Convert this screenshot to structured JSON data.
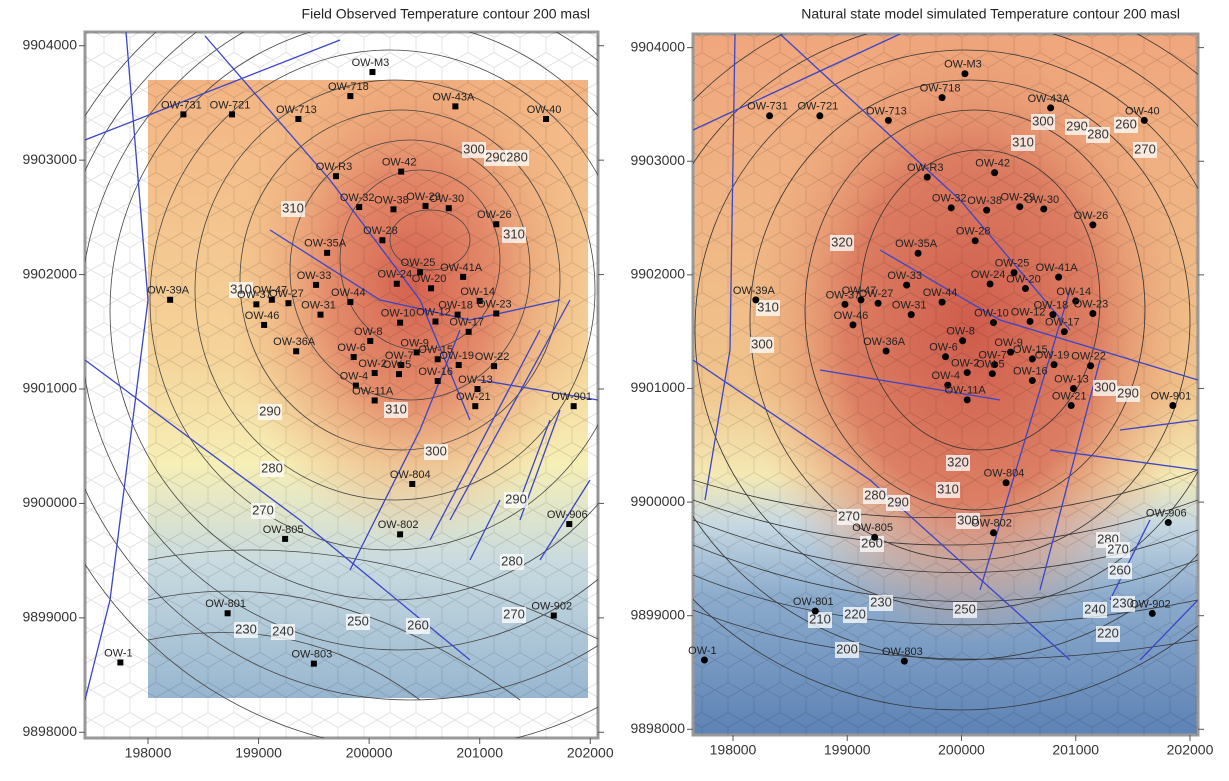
{
  "panels": [
    {
      "title": "Field Observed Temperature contour 200 masl",
      "marker": "square",
      "xlim": [
        197430,
        202070
      ],
      "ylim": [
        9897950,
        9904120
      ],
      "xticks": [
        198000,
        199000,
        200000,
        201000,
        202000
      ],
      "yticks": [
        9898000,
        9899000,
        9900000,
        9901000,
        9902000,
        9903000,
        9904000
      ],
      "contour_labels": [
        310,
        300,
        290,
        280,
        310,
        310,
        310,
        290,
        280,
        300,
        290,
        280,
        270,
        270,
        230,
        240,
        250,
        260
      ]
    },
    {
      "title": "Natural state model simulated  Temperature contour 200 masl",
      "marker": "circle",
      "xlim": [
        197650,
        202070
      ],
      "ylim": [
        9897950,
        9904120
      ],
      "xticks": [
        198000,
        199000,
        200000,
        201000,
        202000
      ],
      "yticks": [
        9898000,
        9899000,
        9900000,
        9901000,
        9902000,
        9903000,
        9904000
      ],
      "contour_labels": [
        300,
        290,
        280,
        260,
        270,
        310,
        320,
        310,
        300,
        300,
        290,
        320,
        310,
        300,
        290,
        280,
        270,
        260,
        280,
        270,
        260,
        250,
        240,
        230,
        220,
        230,
        210,
        220,
        200
      ]
    }
  ],
  "wells": [
    {
      "name": "OW-M3",
      "x": 200030,
      "y": 9903770
    },
    {
      "name": "OW-718",
      "x": 199830,
      "y": 9903560
    },
    {
      "name": "OW-43A",
      "x": 200780,
      "y": 9903470
    },
    {
      "name": "OW-40",
      "x": 201600,
      "y": 9903360
    },
    {
      "name": "OW-731",
      "x": 198320,
      "y": 9903400
    },
    {
      "name": "OW-721",
      "x": 198760,
      "y": 9903400
    },
    {
      "name": "OW-713",
      "x": 199360,
      "y": 9903360
    },
    {
      "name": "OW-R3",
      "x": 199700,
      "y": 9902860
    },
    {
      "name": "OW-42",
      "x": 200290,
      "y": 9902900
    },
    {
      "name": "OW-32",
      "x": 199910,
      "y": 9902590
    },
    {
      "name": "OW-38",
      "x": 200220,
      "y": 9902570
    },
    {
      "name": "OW-29",
      "x": 200510,
      "y": 9902600
    },
    {
      "name": "OW-30",
      "x": 200720,
      "y": 9902580
    },
    {
      "name": "OW-26",
      "x": 201150,
      "y": 9902440
    },
    {
      "name": "OW-28",
      "x": 200120,
      "y": 9902300
    },
    {
      "name": "OW-35A",
      "x": 199620,
      "y": 9902190
    },
    {
      "name": "OW-25",
      "x": 200460,
      "y": 9902020
    },
    {
      "name": "OW-24",
      "x": 200250,
      "y": 9901920
    },
    {
      "name": "OW-20",
      "x": 200560,
      "y": 9901880
    },
    {
      "name": "OW-41A",
      "x": 200850,
      "y": 9901980
    },
    {
      "name": "OW-47",
      "x": 199120,
      "y": 9901780
    },
    {
      "name": "OW-33",
      "x": 199520,
      "y": 9901910
    },
    {
      "name": "OW-37",
      "x": 198980,
      "y": 9901740
    },
    {
      "name": "OW-27",
      "x": 199270,
      "y": 9901750
    },
    {
      "name": "OW-31",
      "x": 199560,
      "y": 9901650
    },
    {
      "name": "OW-46",
      "x": 199050,
      "y": 9901560
    },
    {
      "name": "OW-44",
      "x": 199830,
      "y": 9901760
    },
    {
      "name": "OW-18",
      "x": 200800,
      "y": 9901650
    },
    {
      "name": "OW-14",
      "x": 201000,
      "y": 9901770
    },
    {
      "name": "OW-23",
      "x": 201150,
      "y": 9901660
    },
    {
      "name": "OW-10",
      "x": 200280,
      "y": 9901580
    },
    {
      "name": "OW-12",
      "x": 200600,
      "y": 9901590
    },
    {
      "name": "OW-8",
      "x": 200010,
      "y": 9901420
    },
    {
      "name": "OW-17",
      "x": 200900,
      "y": 9901500
    },
    {
      "name": "OW-9",
      "x": 200430,
      "y": 9901320
    },
    {
      "name": "OW-7",
      "x": 200290,
      "y": 9901210
    },
    {
      "name": "OW-15",
      "x": 200620,
      "y": 9901260
    },
    {
      "name": "OW-36A",
      "x": 199340,
      "y": 9901330
    },
    {
      "name": "OW-6",
      "x": 199860,
      "y": 9901280
    },
    {
      "name": "OW-2",
      "x": 200050,
      "y": 9901140
    },
    {
      "name": "OW-5",
      "x": 200270,
      "y": 9901130
    },
    {
      "name": "OW-19",
      "x": 200810,
      "y": 9901210
    },
    {
      "name": "OW-16",
      "x": 200620,
      "y": 9901070
    },
    {
      "name": "OW-22",
      "x": 201130,
      "y": 9901200
    },
    {
      "name": "OW-13",
      "x": 200980,
      "y": 9901000
    },
    {
      "name": "OW-4",
      "x": 199880,
      "y": 9901030
    },
    {
      "name": "OW-11A",
      "x": 200050,
      "y": 9900900
    },
    {
      "name": "OW-21",
      "x": 200960,
      "y": 9900850
    },
    {
      "name": "OW-39A",
      "x": 198200,
      "y": 9901780
    },
    {
      "name": "OW-901",
      "x": 201850,
      "y": 9900850
    },
    {
      "name": "OW-804",
      "x": 200390,
      "y": 9900170
    },
    {
      "name": "OW-906",
      "x": 201810,
      "y": 9899820
    },
    {
      "name": "OW-805",
      "x": 199240,
      "y": 9899690
    },
    {
      "name": "OW-802",
      "x": 200280,
      "y": 9899730
    },
    {
      "name": "OW-801",
      "x": 198720,
      "y": 9899040
    },
    {
      "name": "OW-902",
      "x": 201670,
      "y": 9899020
    },
    {
      "name": "OW-1",
      "x": 197750,
      "y": 9898610
    },
    {
      "name": "OW-803",
      "x": 199500,
      "y": 9898600
    }
  ]
}
